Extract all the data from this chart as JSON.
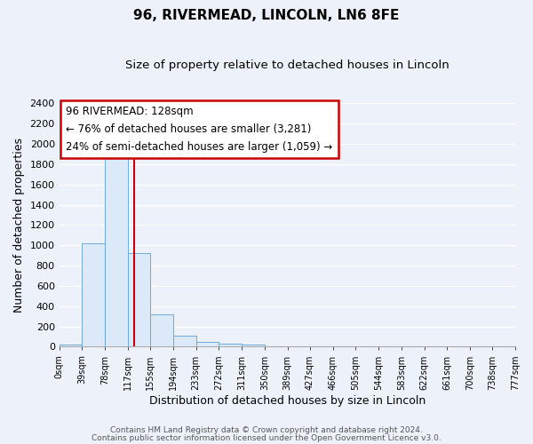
{
  "title": "96, RIVERMEAD, LINCOLN, LN6 8FE",
  "subtitle": "Size of property relative to detached houses in Lincoln",
  "xlabel": "Distribution of detached houses by size in Lincoln",
  "ylabel": "Number of detached properties",
  "bar_edges": [
    0,
    39,
    78,
    117,
    155,
    194,
    233,
    272,
    311,
    350,
    389,
    427,
    466,
    505,
    544,
    583,
    622,
    661,
    700,
    738,
    777
  ],
  "bar_heights": [
    20,
    1020,
    1900,
    920,
    320,
    110,
    50,
    30,
    20,
    0,
    0,
    0,
    0,
    0,
    0,
    0,
    0,
    0,
    0,
    0
  ],
  "tick_labels": [
    "0sqm",
    "39sqm",
    "78sqm",
    "117sqm",
    "155sqm",
    "194sqm",
    "233sqm",
    "272sqm",
    "311sqm",
    "350sqm",
    "389sqm",
    "427sqm",
    "466sqm",
    "505sqm",
    "544sqm",
    "583sqm",
    "622sqm",
    "661sqm",
    "700sqm",
    "738sqm",
    "777sqm"
  ],
  "bar_color": "#dce9f8",
  "bar_edge_color": "#6fa8d8",
  "vline_x": 128,
  "vline_color": "#cc0000",
  "ylim": [
    0,
    2400
  ],
  "yticks": [
    0,
    200,
    400,
    600,
    800,
    1000,
    1200,
    1400,
    1600,
    1800,
    2000,
    2200,
    2400
  ],
  "annotation_title": "96 RIVERMEAD: 128sqm",
  "annotation_line1": "← 76% of detached houses are smaller (3,281)",
  "annotation_line2": "24% of semi-detached houses are larger (1,059) →",
  "annotation_box_color": "#ffffff",
  "annotation_box_edge": "#cc0000",
  "footer_line1": "Contains HM Land Registry data © Crown copyright and database right 2024.",
  "footer_line2": "Contains public sector information licensed under the Open Government Licence v3.0.",
  "background_color": "#edf2fa",
  "grid_color": "#ffffff"
}
